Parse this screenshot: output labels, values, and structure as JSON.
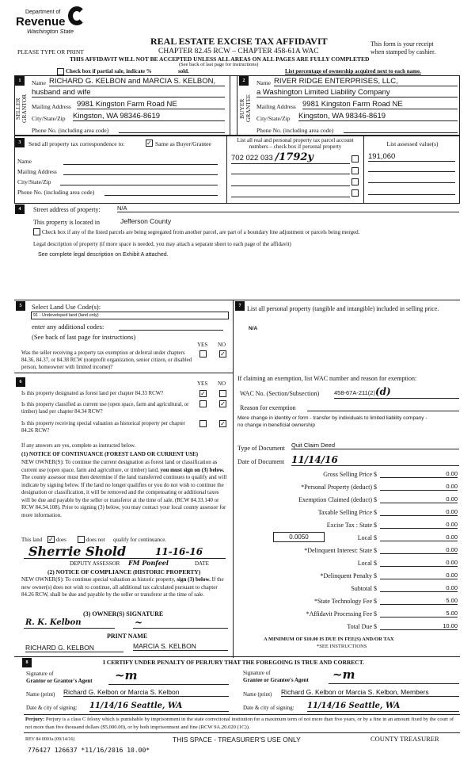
{
  "header": {
    "logo_dept": "Department of",
    "logo_name": "Revenue",
    "logo_state": "Washington State",
    "title": "REAL ESTATE EXCISE TAX AFFIDAVIT",
    "chapter": "CHAPTER 82.45 RCW – CHAPTER 458-61A WAC",
    "receipt1": "This form is your receipt",
    "receipt2": "when stamped by cashier.",
    "type_print": "PLEASE TYPE OR PRINT",
    "warning": "THIS AFFIDAVIT WILL NOT BE ACCEPTED UNLESS ALL AREAS ON ALL PAGES ARE FULLY COMPLETED",
    "see_back": "(See back of last page for instructions)",
    "partial_sale": "Check box if partial sale, indicate %",
    "sold": "sold.",
    "ownership": "List percentage of ownership acquired next to each name."
  },
  "seller": {
    "num": "1",
    "side": "SELLER GRANTOR",
    "name_label": "Name",
    "name": "RICHARD G. KELBON and MARCIA S. KELBON,",
    "name2": "husband and wife",
    "mail_label": "Mailing Address",
    "mail": "9981 Kingston Farm Road NE",
    "city_label": "City/State/Zip",
    "city": "Kingston, WA 98346-8619",
    "phone_label": "Phone No. (including area code)"
  },
  "buyer": {
    "num": "2",
    "side": "BUYER GRANTEE",
    "name_label": "Name",
    "name": "RIVER RIDGE ENTERPRISES, LLC,",
    "name2": "a Washington Limited Liability Company",
    "mail_label": "Mailing Address",
    "mail": "9981 Kingston Farm Road NE",
    "city_label": "City/State/Zip",
    "city": "Kingston, WA 98346-8619",
    "phone_label": "Phone No. (including area code)"
  },
  "sec3": {
    "num": "3",
    "send": "Send all property tax correspondence to:",
    "same": "Same as Buyer/Grantee",
    "same_checked": true,
    "name": "Name",
    "mail": "Mailing Address",
    "city": "City/State/Zip",
    "phone": "Phone No. (including area code)",
    "parcel_header": "List all real and personal property tax parcel account numbers – check box if personal property",
    "assessed_header": "List assessed value(s)",
    "parcel": "702 022 033",
    "parcel_hw": "/1792y",
    "assessed": "191,060"
  },
  "sec4": {
    "num": "4",
    "street_label": "Street address of property:",
    "street": "N/A",
    "located_label": "This property is located in",
    "county": "Jefferson County",
    "segregate": "Check box if any of the listed parcels are being segregated from another parcel, are part of a boundary line adjustment or parcels being merged.",
    "legal_label": "Legal description of property (if more space is needed, you may attach a separate sheet to each page of the affidavit)",
    "legal": "See complete legal description on Exhibit A attached."
  },
  "sec5": {
    "num": "5",
    "label": "Select Land Use Code(s):",
    "code": "91 - Undeveloped land (land only)",
    "additional": "enter any additional codes:",
    "see_back": "(See back of last page for instructions)",
    "yes": "YES",
    "no": "NO",
    "question": "Was the seller receiving a property tax exemption or deferral under chapters 84.36, 84.37, or 84.38 RCW (nonprofit organization, senior citizen, or disabled person, homeowner with limited income)?",
    "answer": "no"
  },
  "sec6": {
    "num": "6",
    "yes": "YES",
    "no": "NO",
    "q1": "Is this property designated as forest land per chapter 84.33 RCW?",
    "a1": "yes",
    "q2": "Is this property classified as current use (open space, farm and agricultural, or timber) land per chapter 84.34 RCW?",
    "a2": "no",
    "q3": "Is this property receiving special valuation as historical property per chapter 84.26 RCW?",
    "a3": "no",
    "if_any": "If any answers are yes, complete as instructed below.",
    "notice1_title": "(1) NOTICE OF CONTINUANCE (FOREST LAND OR CURRENT USE)",
    "notice1_a": "NEW OWNER(S): To continue the current designation as forest land or classification as current use (open space, farm and agriculture, or timber) land,",
    "notice1_bold": "you must sign on (3) below.",
    "notice1_b": "The county assessor must then determine if the land transferred continues to qualify and will indicate by signing below. If the land no longer qualifies or you do not wish to continue the designation or classification, it will be removed and the compensating or additional taxes will be due and payable by the seller or transferor at the time of sale. (RCW 84.33.140 or RCW 84.34.108). Prior to signing (3) below, you may contact your local county assessor for more information.",
    "this_land": "This land",
    "does": "does",
    "does_not": "does not",
    "qualify": "qualify for continuance.",
    "assessor_sig": "Sherrie Shold",
    "assessor_date": "11-16-16",
    "deputy": "DEPUTY ASSESSOR",
    "date": "DATE",
    "assessor_note": "FM Ponfeel",
    "notice2_title": "(2) NOTICE OF COMPLIANCE (HISTORIC PROPERTY)",
    "notice2_a": "NEW OWNER(S): To continue special valuation as historic property,",
    "notice2_bold": "sign (3) below.",
    "notice2_b": "If the new owner(s) does not wish to continue, all additional tax calculated pursuant to chapter 84.26 RCW, shall be due and payable by the seller or transferor at the time of sale.",
    "owner_sig_title": "(3) OWNER(S) SIGNATURE",
    "print_name": "PRINT NAME",
    "owner1": "RICHARD G. KELBON",
    "owner2": "MARCIA S. KELBON"
  },
  "sec7": {
    "num": "7",
    "label": "List all personal property (tangible and intangible) included in selling price.",
    "value": "N/A",
    "exemption_label": "If claiming an exemption, list WAC number and reason for exemption:",
    "wac_label": "WAC No. (Section/Subsection)",
    "wac": "458-67A-211(2)",
    "wac_hw": "(d)",
    "reason_label": "Reason for exemption",
    "reason": "Mere change in identity or form - transfer by individuals to limited liability company  - no change in beneficial ownership",
    "doc_type_label": "Type of Document",
    "doc_type": "Quit Claim Deed",
    "doc_date_label": "Date of Document",
    "doc_date": "11/14/16",
    "rate": "0.0050",
    "amounts": [
      {
        "label": "Gross Selling Price $",
        "value": "0.00"
      },
      {
        "label": "*Personal Property (deduct) $",
        "value": "0.00"
      },
      {
        "label": "Exemption Claimed (deduct) $",
        "value": "0.00"
      },
      {
        "label": "Taxable Selling Price $",
        "value": "0.00"
      },
      {
        "label": "Excise Tax : State $",
        "value": "0.00"
      },
      {
        "label": "Local $",
        "value": "0.00"
      },
      {
        "label": "*Delinquent Interest: State $",
        "value": "0.00"
      },
      {
        "label": "Local $",
        "value": "0.00"
      },
      {
        "label": "*Delinquent Penalty $",
        "value": "0.00"
      },
      {
        "label": "Subtotal $",
        "value": "0.00"
      },
      {
        "label": "*State Technology Fee $",
        "value": "5.00"
      },
      {
        "label": "*Affidavit Processing Fee $",
        "value": "5.00"
      },
      {
        "label": "Total Due $",
        "value": "10.00"
      }
    ],
    "minimum": "A MINIMUM OF $10.00 IS DUE IN FEE(S) AND/OR TAX",
    "see_instr": "*SEE INSTRUCTIONS"
  },
  "sec8": {
    "num": "8",
    "certify": "I CERTIFY UNDER PENALTY OF PERJURY THAT THE FOREGOING IS TRUE AND CORRECT.",
    "grantor_sig_l1": "Signature of",
    "grantor_sig_l2": "Grantor or Grantor's Agent",
    "grantee_sig_l1": "Signature of",
    "grantee_sig_l2": "Grantee or Grantee's Agent",
    "name_print": "Name (print)",
    "grantor_name": "Richard G. Kelbon or Marcia S. Kelbon",
    "grantee_name": "Richard G. Kelbon or Marcia S. Kelbon, Members",
    "date_city": "Date & city of signing:",
    "grantor_date": "11/14/16   Seattle, WA",
    "grantee_date": "11/14/16   Seattle, WA"
  },
  "footer": {
    "perjury_bold": "Perjury:",
    "perjury": "Perjury is a class C felony which is punishable by imprisonment in the state correctional institution for a maximum term of not more than five years, or by a fine in an amount fixed by the court of not more than five thousand dollars ($5,000.00), or by both imprisonment and fine (RCW 9A.20.020 (1C)).",
    "rev": "REV 84 0001a (09/14/16)",
    "treasurer_space": "THIS SPACE - TREASURER'S USE ONLY",
    "county_treasurer": "COUNTY TREASURER",
    "stamp": "776427 126637 *11/16/2016 10.00*"
  }
}
